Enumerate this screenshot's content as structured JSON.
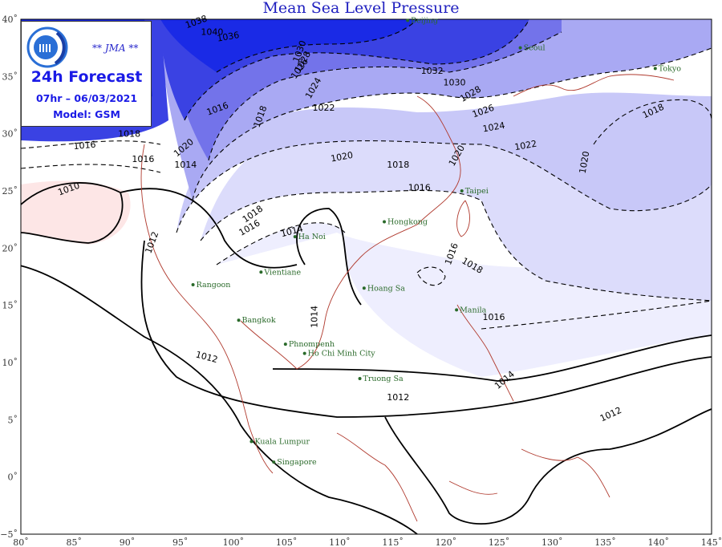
{
  "title": "Mean Sea Level Pressure",
  "info_box": {
    "agency": "** JMA **",
    "forecast": "24h Forecast",
    "time": "07hr – 06/03/2021",
    "model": "Model: GSM"
  },
  "axes": {
    "x_ticks": [
      "80˚",
      "85˚",
      "90˚",
      "95˚",
      "100˚",
      "105˚",
      "110˚",
      "115˚",
      "120˚",
      "125˚",
      "130˚",
      "135˚",
      "140˚",
      "145˚"
    ],
    "y_ticks": [
      "40˚",
      "35˚",
      "30˚",
      "25˚",
      "20˚",
      "15˚",
      "10˚",
      "5˚",
      "0˚",
      "−5˚"
    ],
    "lon_range": [
      80,
      145
    ],
    "lat_range": [
      -5,
      40
    ]
  },
  "cities": [
    {
      "name": "Beijing",
      "lon": 116.4,
      "lat": 39.9
    },
    {
      "name": "Seoul",
      "lon": 127.0,
      "lat": 37.5
    },
    {
      "name": "Tokyo",
      "lon": 139.7,
      "lat": 35.7
    },
    {
      "name": "Taipei",
      "lon": 121.5,
      "lat": 25.0
    },
    {
      "name": "Hongkong",
      "lon": 114.2,
      "lat": 22.3
    },
    {
      "name": "Ha Noi",
      "lon": 105.8,
      "lat": 21.0
    },
    {
      "name": "Vientiane",
      "lon": 102.6,
      "lat": 17.9
    },
    {
      "name": "Rangoon",
      "lon": 96.2,
      "lat": 16.8
    },
    {
      "name": "Hoang Sa",
      "lon": 112.3,
      "lat": 16.5
    },
    {
      "name": "Manila",
      "lon": 121.0,
      "lat": 14.6
    },
    {
      "name": "Bangkok",
      "lon": 100.5,
      "lat": 13.7
    },
    {
      "name": "Phnompenh",
      "lon": 104.9,
      "lat": 11.6
    },
    {
      "name": "Ho Chi Minh City",
      "lon": 106.7,
      "lat": 10.8
    },
    {
      "name": "Truong Sa",
      "lon": 111.9,
      "lat": 8.6
    },
    {
      "name": "Kuala Lumpur",
      "lon": 101.7,
      "lat": 3.1
    },
    {
      "name": "Singapore",
      "lon": 103.8,
      "lat": 1.3
    }
  ],
  "isobars": [
    {
      "value": "1010",
      "lon": 84.5,
      "lat": 25.2,
      "rot": -20
    },
    {
      "value": "1012",
      "lon": 92.3,
      "lat": 20.5,
      "rot": -70
    },
    {
      "value": "1012",
      "lon": 97.5,
      "lat": 10.5,
      "rot": 15
    },
    {
      "value": "1012",
      "lon": 115.5,
      "lat": 7.0,
      "rot": 0
    },
    {
      "value": "1012",
      "lon": 135.5,
      "lat": 5.5,
      "rot": -25
    },
    {
      "value": "1014",
      "lon": 105.5,
      "lat": 21.5,
      "rot": -15
    },
    {
      "value": "1014",
      "lon": 95.5,
      "lat": 27.3,
      "rot": 0
    },
    {
      "value": "1014",
      "lon": 107.6,
      "lat": 14.0,
      "rot": -90
    },
    {
      "value": "1014",
      "lon": 125.5,
      "lat": 8.5,
      "rot": -40
    },
    {
      "value": "1016",
      "lon": 86.0,
      "lat": 29.0,
      "rot": -5
    },
    {
      "value": "1016",
      "lon": 91.5,
      "lat": 27.8,
      "rot": 0
    },
    {
      "value": "1016",
      "lon": 117.5,
      "lat": 25.3,
      "rot": 0
    },
    {
      "value": "1016",
      "lon": 124.5,
      "lat": 14.0,
      "rot": 0
    },
    {
      "value": "1016",
      "lon": 120.5,
      "lat": 19.5,
      "rot": -70
    },
    {
      "value": "1016",
      "lon": 98.5,
      "lat": 32.2,
      "rot": -20
    },
    {
      "value": "1016",
      "lon": 101.5,
      "lat": 21.8,
      "rot": -30
    },
    {
      "value": "1018",
      "lon": 101.8,
      "lat": 23.0,
      "rot": -35
    },
    {
      "value": "1018",
      "lon": 122.5,
      "lat": 18.5,
      "rot": 30
    },
    {
      "value": "1018",
      "lon": 139.5,
      "lat": 32.0,
      "rot": -25
    },
    {
      "value": "1018",
      "lon": 115.5,
      "lat": 27.3,
      "rot": 0
    },
    {
      "value": "1018",
      "lon": 102.5,
      "lat": 31.5,
      "rot": -70
    },
    {
      "value": "1018",
      "lon": 90.2,
      "lat": 30.0,
      "rot": 0
    },
    {
      "value": "1020",
      "lon": 110.2,
      "lat": 28.0,
      "rot": -10
    },
    {
      "value": "1020",
      "lon": 121.0,
      "lat": 28.1,
      "rot": -60
    },
    {
      "value": "1020",
      "lon": 133.0,
      "lat": 27.5,
      "rot": -80
    },
    {
      "value": "1020",
      "lon": 95.3,
      "lat": 28.8,
      "rot": -40
    },
    {
      "value": "1022",
      "lon": 108.5,
      "lat": 32.3,
      "rot": 0
    },
    {
      "value": "1022",
      "lon": 127.5,
      "lat": 29.0,
      "rot": -10
    },
    {
      "value": "1024",
      "lon": 107.5,
      "lat": 34.0,
      "rot": -60
    },
    {
      "value": "1024",
      "lon": 124.5,
      "lat": 30.6,
      "rot": -10
    },
    {
      "value": "1026",
      "lon": 106.2,
      "lat": 35.7,
      "rot": -55
    },
    {
      "value": "1026",
      "lon": 123.5,
      "lat": 32.0,
      "rot": -20
    },
    {
      "value": "1028",
      "lon": 122.3,
      "lat": 33.5,
      "rot": -30
    },
    {
      "value": "1028",
      "lon": 106.5,
      "lat": 36.3,
      "rot": -60
    },
    {
      "value": "1030",
      "lon": 120.8,
      "lat": 34.5,
      "rot": 0
    },
    {
      "value": "1030",
      "lon": 106.2,
      "lat": 37.2,
      "rot": -70
    },
    {
      "value": "1032",
      "lon": 118.7,
      "lat": 35.5,
      "rot": 0
    },
    {
      "value": "1036",
      "lon": 99.5,
      "lat": 38.5,
      "rot": -10
    },
    {
      "value": "1038",
      "lon": 96.5,
      "lat": 39.8,
      "rot": -20
    },
    {
      "value": "1040",
      "lon": 98.0,
      "lat": 38.9,
      "rot": 0
    }
  ],
  "colors": {
    "title": "#1f1fbf",
    "high_pressure": "#1a2ae6",
    "low_pressure": "#fde6e6",
    "coastline": "#b03a2e",
    "city": "#2a6a2a"
  }
}
